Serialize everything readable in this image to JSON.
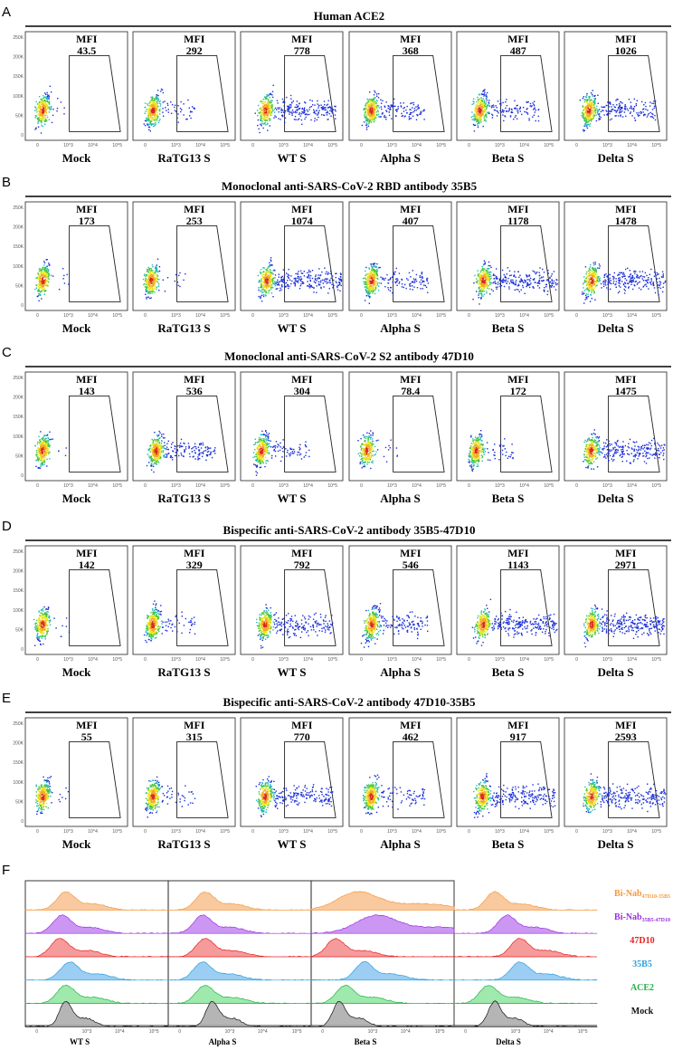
{
  "colors": {
    "bi_nab_47d10_35b5": "#f59a3e",
    "bi_nab_35b5_47d10": "#9b30e0",
    "ab_47d10": "#e52222",
    "ab_35b5": "#2b9fe0",
    "ace2": "#24b14a",
    "mock": "#111111"
  },
  "chart_data": [
    {
      "type": "scatter",
      "panel": "A",
      "title": "Human ACE2",
      "conditions": [
        "Mock",
        "RaTG13 S",
        "WT S",
        "Alpha S",
        "Beta S",
        "Delta S"
      ],
      "mfi_label": "MFI",
      "mfi": [
        "43.5",
        "292",
        "778",
        "368",
        "487",
        "1026"
      ],
      "spread": [
        0.05,
        0.3,
        0.8,
        0.5,
        0.6,
        0.75
      ],
      "y_ticks": [
        "250K",
        "200K",
        "150K",
        "100K",
        "50K",
        "0"
      ],
      "x_ticks": [
        "0",
        "10^3",
        "10^4",
        "10^5"
      ]
    },
    {
      "type": "scatter",
      "panel": "B",
      "title": "Monoclonal anti-SARS-CoV-2 RBD antibody 35B5",
      "conditions": [
        "Mock",
        "RaTG13 S",
        "WT S",
        "Alpha S",
        "Beta S",
        "Delta S"
      ],
      "mfi_label": "MFI",
      "mfi": [
        "173",
        "253",
        "1074",
        "407",
        "1178",
        "1478"
      ],
      "spread": [
        0.05,
        0.15,
        0.9,
        0.55,
        0.95,
        1.0
      ],
      "y_ticks": [
        "250K",
        "200K",
        "150K",
        "100K",
        "50K",
        "0"
      ],
      "x_ticks": [
        "0",
        "10^3",
        "10^4",
        "10^5"
      ]
    },
    {
      "type": "scatter",
      "panel": "C",
      "title": "Monoclonal anti-SARS-CoV-2 S2 antibody 47D10",
      "conditions": [
        "Mock",
        "RaTG13 S",
        "WT S",
        "Alpha S",
        "Beta S",
        "Delta S"
      ],
      "mfi_label": "MFI",
      "mfi": [
        "143",
        "536",
        "304",
        "78.4",
        "172",
        "1475"
      ],
      "spread": [
        0.05,
        0.6,
        0.4,
        0.1,
        0.25,
        0.95
      ],
      "y_ticks": [
        "250K",
        "200K",
        "150K",
        "100K",
        "50K",
        "0"
      ],
      "x_ticks": [
        "0",
        "10^3",
        "10^4",
        "10^5"
      ]
    },
    {
      "type": "scatter",
      "panel": "D",
      "title": "Bispecific anti-SARS-CoV-2 antibody 35B5-47D10",
      "conditions": [
        "Mock",
        "RaTG13 S",
        "WT S",
        "Alpha S",
        "Beta S",
        "Delta S"
      ],
      "mfi_label": "MFI",
      "mfi": [
        "142",
        "329",
        "792",
        "546",
        "1143",
        "2971"
      ],
      "spread": [
        0.05,
        0.3,
        0.75,
        0.55,
        0.9,
        1.0
      ],
      "y_ticks": [
        "250K",
        "200K",
        "150K",
        "100K",
        "50K",
        "0"
      ],
      "x_ticks": [
        "0",
        "10^3",
        "10^4",
        "10^5"
      ]
    },
    {
      "type": "scatter",
      "panel": "E",
      "title": "Bispecific anti-SARS-CoV-2 antibody 47D10-35B5",
      "conditions": [
        "Mock",
        "RaTG13 S",
        "WT S",
        "Alpha S",
        "Beta S",
        "Delta S"
      ],
      "mfi_label": "MFI",
      "mfi": [
        "55",
        "315",
        "770",
        "462",
        "917",
        "2593"
      ],
      "spread": [
        0.05,
        0.3,
        0.75,
        0.5,
        0.85,
        1.0
      ],
      "y_ticks": [
        "250K",
        "200K",
        "150K",
        "100K",
        "50K",
        "0"
      ],
      "x_ticks": [
        "0",
        "10^3",
        "10^4",
        "10^5"
      ]
    },
    {
      "type": "histogram",
      "panel": "F",
      "x_labels": [
        "WT S",
        "Alpha S",
        "Beta S",
        "Delta S"
      ],
      "x_ticks": [
        "0",
        "10^3",
        "10^4",
        "10^5"
      ],
      "legend": [
        "Bi-Nab47D10-35B5",
        "Bi-Nab35B5-47D10",
        "47D10",
        "35B5",
        "ACE2",
        "Mock"
      ],
      "legend_main": [
        "Bi-Nab",
        "Bi-Nab",
        "47D10",
        "35B5",
        "ACE2",
        "Mock"
      ],
      "legend_sub": [
        "47D10-35B5",
        "35B5-47D10",
        "",
        "",
        "",
        ""
      ],
      "peak_positions": [
        [
          0.25,
          0.22,
          0.2,
          0.28,
          0.25,
          0.25
        ],
        [
          0.22,
          0.2,
          0.22,
          0.2,
          0.22,
          0.28
        ],
        [
          0.3,
          0.45,
          0.12,
          0.35,
          0.2,
          0.15
        ],
        [
          0.25,
          0.35,
          0.45,
          0.45,
          0.2,
          0.25
        ]
      ]
    }
  ]
}
